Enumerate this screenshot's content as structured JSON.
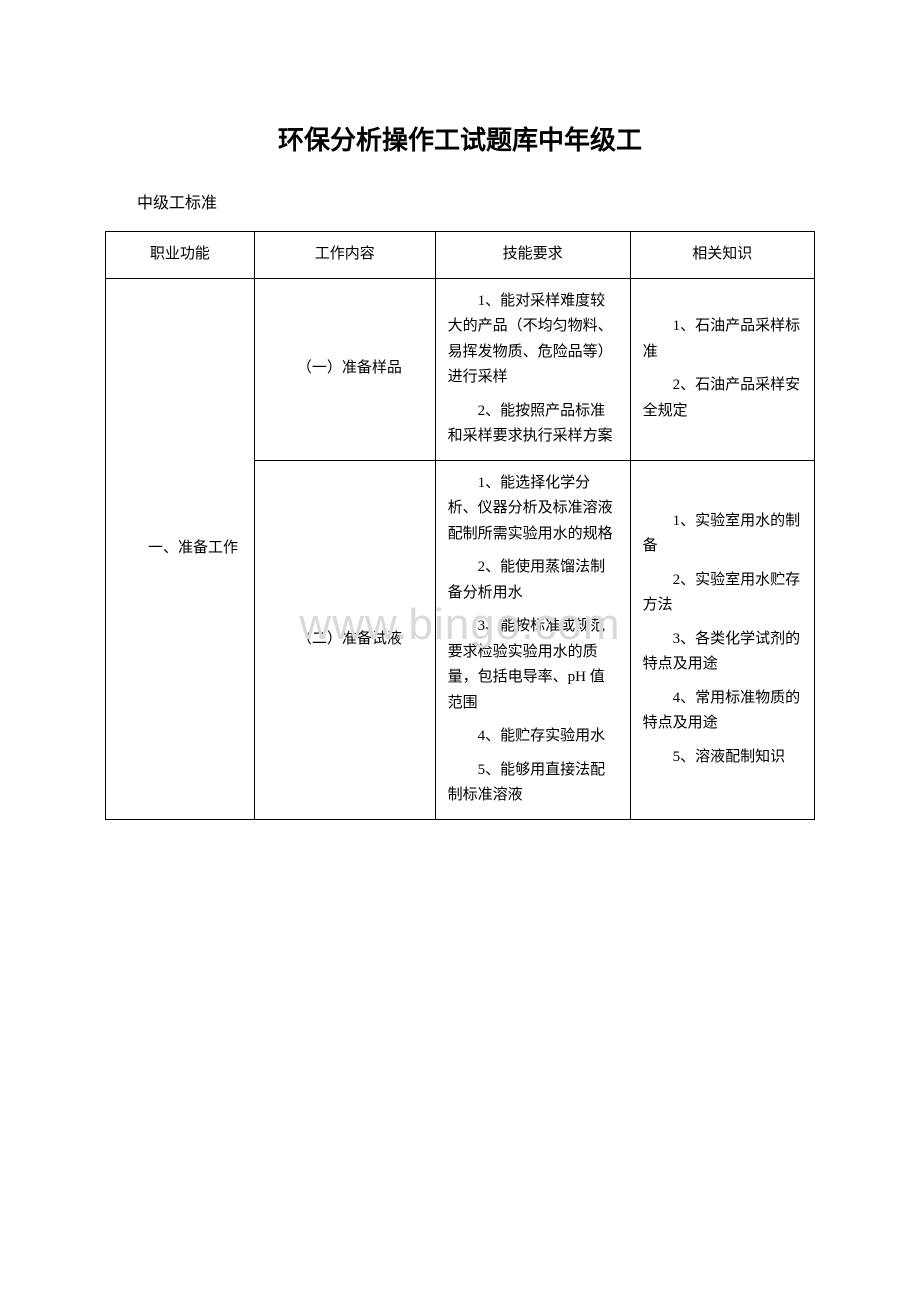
{
  "title": "环保分析操作工试题库中年级工",
  "subtitle": "中级工标准",
  "watermark": "www.bingo.com",
  "table": {
    "headers": {
      "col1": "职业功能",
      "col2": "工作内容",
      "col3": "技能要求",
      "col4": "相关知识"
    },
    "section_label": "一、准备工作",
    "rows": [
      {
        "work": "（一）准备样品",
        "skills": [
          "1、能对采样难度较大的产品（不均匀物料、易挥发物质、危险品等）进行采样",
          "2、能按照产品标准和采样要求执行采样方案"
        ],
        "knowledge": [
          "1、石油产品采样标准",
          "2、石油产品采样安全规定"
        ]
      },
      {
        "work": "（二）准备试液",
        "skills": [
          "1、能选择化学分析、仪器分析及标准溶液配制所需实验用水的规格",
          "2、能使用蒸馏法制备分析用水",
          "3、能按标准或规范要求检验实验用水的质量，包括电导率、pH 值范围",
          "4、能贮存实验用水",
          "5、能够用直接法配制标准溶液"
        ],
        "knowledge": [
          "1、实验室用水的制备",
          "2、实验室用水贮存方法",
          "3、各类化学试剂的特点及用途",
          "4、常用标准物质的特点及用途",
          "5、溶液配制知识"
        ]
      }
    ]
  }
}
